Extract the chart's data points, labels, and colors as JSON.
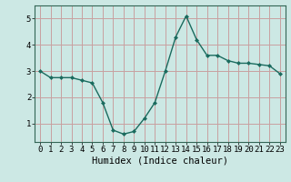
{
  "x": [
    0,
    1,
    2,
    3,
    4,
    5,
    6,
    7,
    8,
    9,
    10,
    11,
    12,
    13,
    14,
    15,
    16,
    17,
    18,
    19,
    20,
    21,
    22,
    23
  ],
  "y": [
    3.0,
    2.75,
    2.75,
    2.75,
    2.65,
    2.55,
    1.8,
    0.75,
    0.6,
    0.7,
    1.2,
    1.8,
    3.0,
    4.3,
    5.1,
    4.2,
    3.6,
    3.6,
    3.4,
    3.3,
    3.3,
    3.25,
    3.2,
    2.9
  ],
  "line_color": "#1a6b5e",
  "marker": "D",
  "marker_size": 2.0,
  "bg_color": "#cce8e4",
  "grid_color": "#c8a0a0",
  "xlabel": "Humidex (Indice chaleur)",
  "xlabel_fontsize": 7.5,
  "yticks": [
    1,
    2,
    3,
    4,
    5
  ],
  "xticks": [
    0,
    1,
    2,
    3,
    4,
    5,
    6,
    7,
    8,
    9,
    10,
    11,
    12,
    13,
    14,
    15,
    16,
    17,
    18,
    19,
    20,
    21,
    22,
    23
  ],
  "ylim": [
    0.3,
    5.5
  ],
  "xlim": [
    -0.5,
    23.5
  ],
  "tick_fontsize": 6.5,
  "linewidth": 1.0
}
